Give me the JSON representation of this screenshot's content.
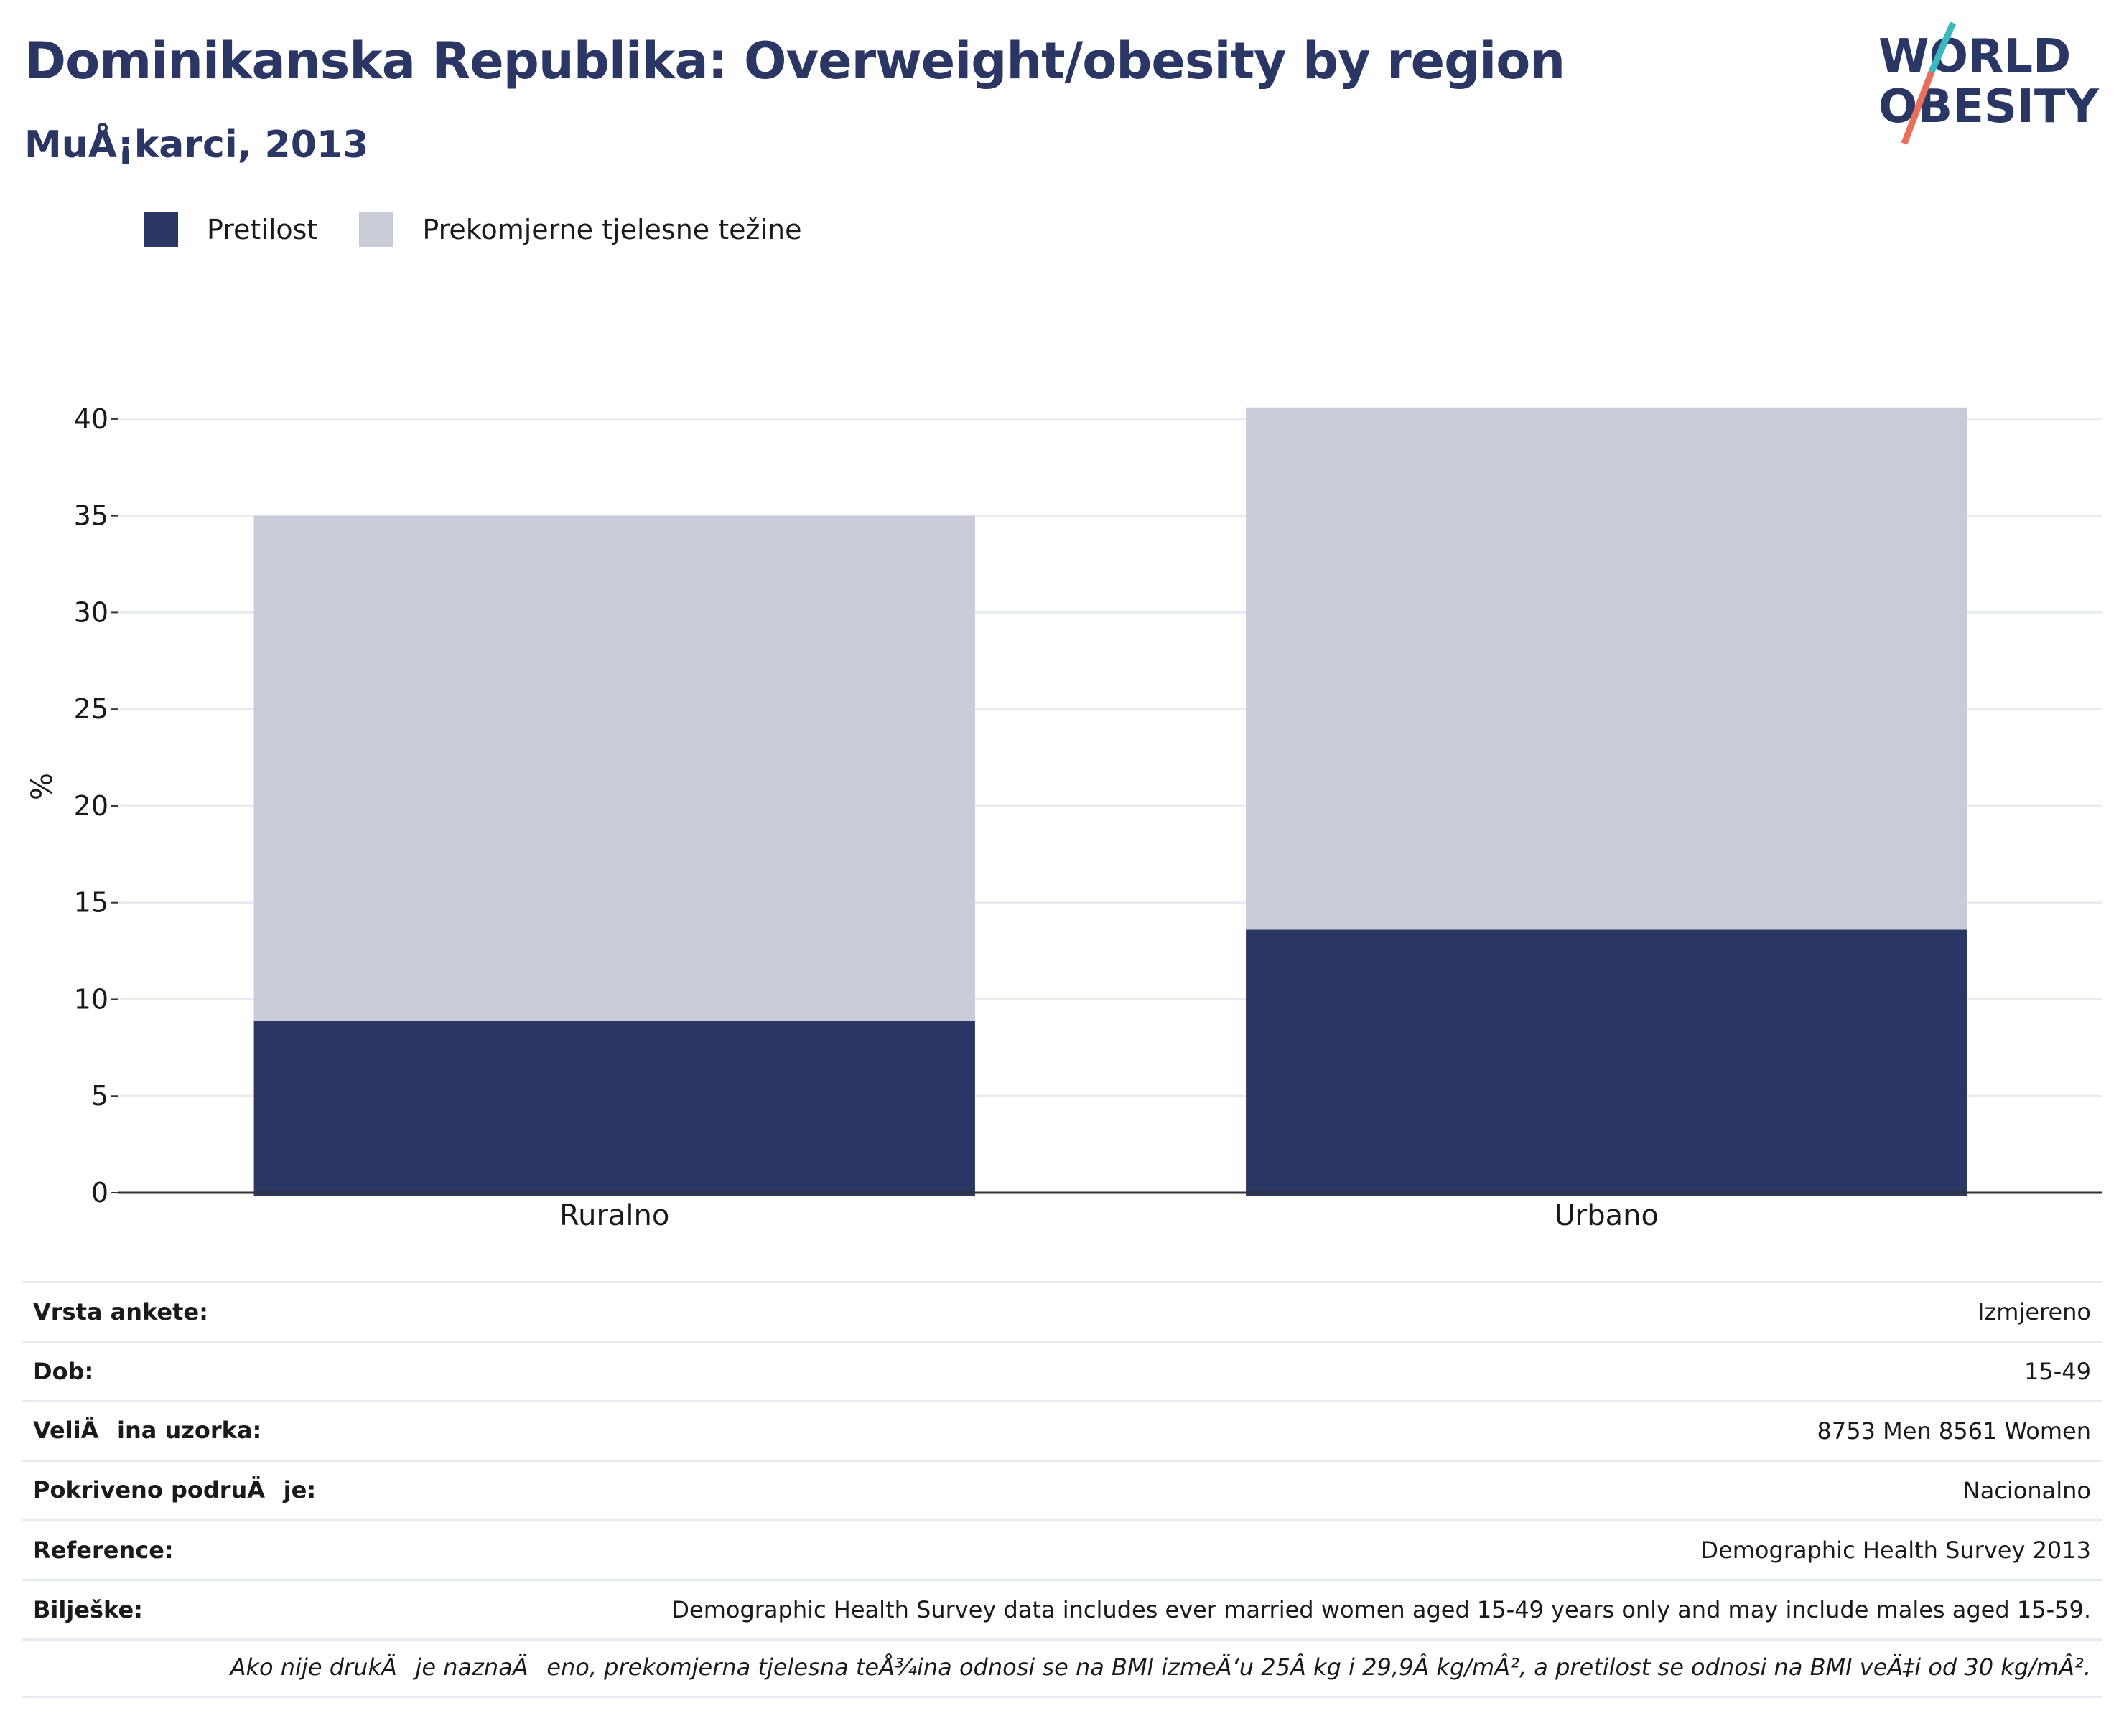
{
  "header": {
    "title": "Dominikanska Republika: Overweight/obesity by region",
    "subtitle": "MuÅ¡karci, 2013"
  },
  "logo": {
    "line1": "WORLD",
    "line2": "OBESITY",
    "colors": {
      "text": "#2a3663",
      "slash_teal": "#3bb8c0",
      "slash_red": "#e8705a"
    }
  },
  "legend": [
    {
      "label": "Pretilost",
      "color": "#2a3663"
    },
    {
      "label": "Prekomjerne tjelesne težine",
      "color": "#c9ccd8"
    }
  ],
  "chart_data": {
    "type": "bar",
    "stacked": true,
    "categories": [
      "Ruralno",
      "Urbano"
    ],
    "series": [
      {
        "name": "Pretilost",
        "color": "#2a3663",
        "values": [
          8.9,
          13.6
        ]
      },
      {
        "name": "Prekomjerne tjelesne težine",
        "color": "#c9ccd8",
        "values": [
          26.1,
          27.0
        ]
      }
    ],
    "ylabel": "%",
    "ylim": [
      0,
      42
    ],
    "yticks": [
      0,
      5,
      10,
      15,
      20,
      25,
      30,
      35,
      40
    ],
    "grid": true,
    "legend_position": "top-left"
  },
  "info": {
    "rows": [
      {
        "key": "Vrsta ankete:",
        "value": "Izmjereno"
      },
      {
        "key": "Dob:",
        "value": "15-49"
      },
      {
        "key": "VeliÄina uzorka:",
        "value": "8753 Men 8561 Women"
      },
      {
        "key": "Pokriveno podruÄje:",
        "value": "Nacionalno"
      },
      {
        "key": "Reference:",
        "value": "Demographic Health Survey 2013"
      },
      {
        "key": "Bilješke:",
        "value": "Demographic Health Survey data includes ever married women aged 15-49 years only and may include males aged 15-59."
      }
    ],
    "note": "Ako nije drukÄje naznaÄeno, prekomjerna tjelesna teÅ¾ina odnosi se na BMI izmeÄ‘u 25Â kg i 29,9Â kg/mÂ², a pretilost se odnosi na BMI veÄ‡i od 30 kg/mÂ²."
  }
}
